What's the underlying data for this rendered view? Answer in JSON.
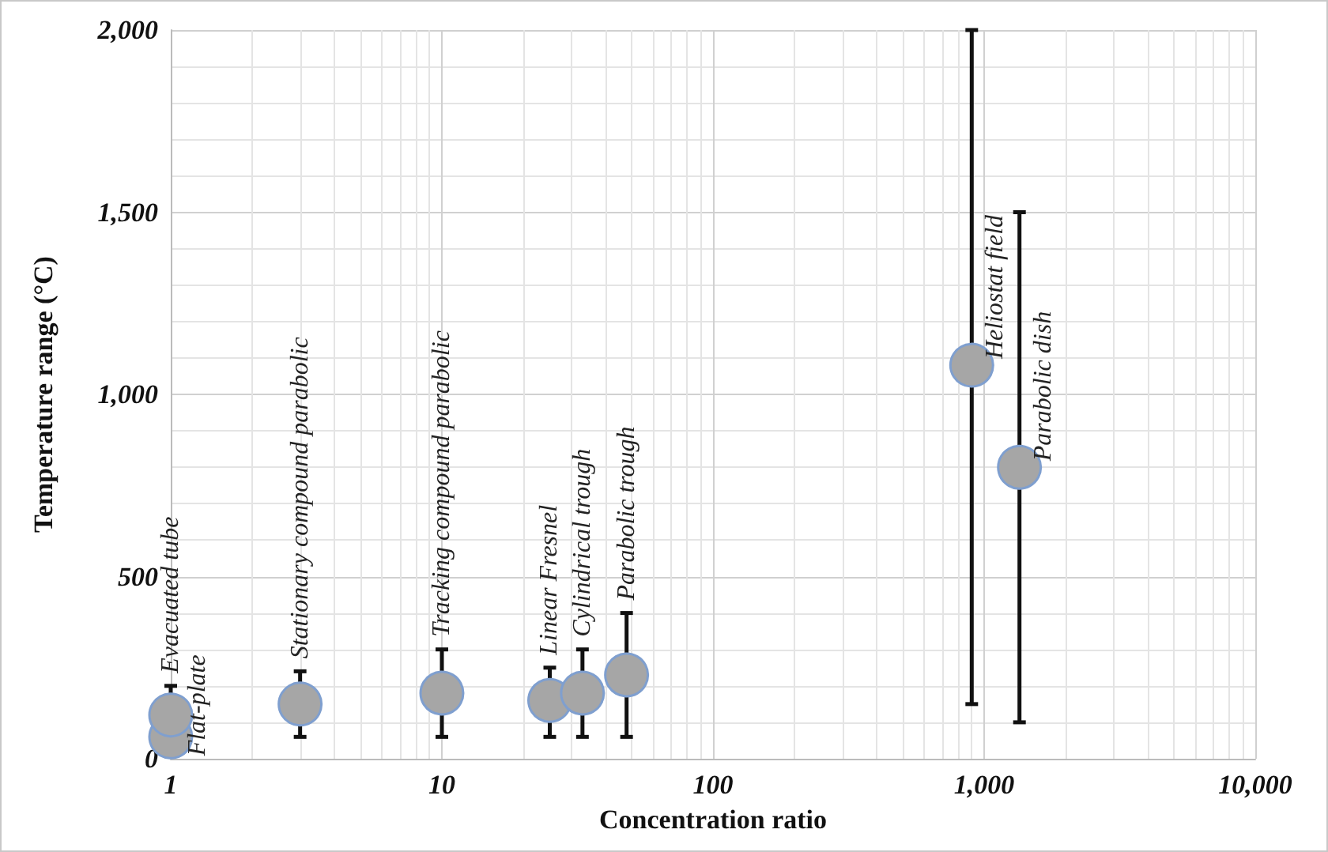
{
  "chart_data": {
    "type": "scatter",
    "xlabel": "Concentration ratio",
    "ylabel": "Temperature range (°C)",
    "log": "x",
    "grid": true,
    "marker": "circle",
    "xlim": [
      1,
      10000
    ],
    "xticks": [
      1,
      10,
      100,
      {
        "value": 1000,
        "label": "1,000"
      },
      {
        "value": 10000,
        "label": "10,000"
      }
    ],
    "ylim": [
      0,
      2000
    ],
    "yticks": [
      0,
      500,
      {
        "value": 1000,
        "label": "1,000"
      },
      {
        "value": 1500,
        "label": "1,500"
      },
      {
        "value": 2000,
        "label": "2,000"
      }
    ],
    "series": [
      {
        "color": "#a6a6a6",
        "x": [
          1,
          1,
          3,
          10,
          25,
          33,
          48,
          900,
          1350
        ],
        "values": [
          60,
          120,
          150,
          180,
          160,
          180,
          230,
          1080,
          800
        ],
        "errors": [
          null,
          [
            50,
            200
          ],
          [
            60,
            240
          ],
          [
            60,
            300
          ],
          [
            60,
            250
          ],
          [
            60,
            300
          ],
          [
            60,
            400
          ],
          [
            150,
            2000
          ],
          [
            100,
            1500
          ]
        ]
      }
    ],
    "annotations": [
      {
        "text": "Flat-plate",
        "x": 1,
        "y": 60
      },
      {
        "text": "Evacuated tube",
        "x": 1,
        "y": 120
      },
      {
        "text": "Stationary compound parabolic",
        "x": 3,
        "y": 150
      },
      {
        "text": "Tracking compound parabolic",
        "x": 10,
        "y": 180
      },
      {
        "text": "Linear Fresnel",
        "x": 25,
        "y": 160
      },
      {
        "text": "Cylindrical trough",
        "x": 33,
        "y": 180
      },
      {
        "text": "Parabolic trough",
        "x": 48,
        "y": 230
      },
      {
        "text": "Heliostat field",
        "x": 900,
        "y": 1080
      },
      {
        "text": "Parabolic dish",
        "x": 1350,
        "y": 800
      }
    ]
  }
}
